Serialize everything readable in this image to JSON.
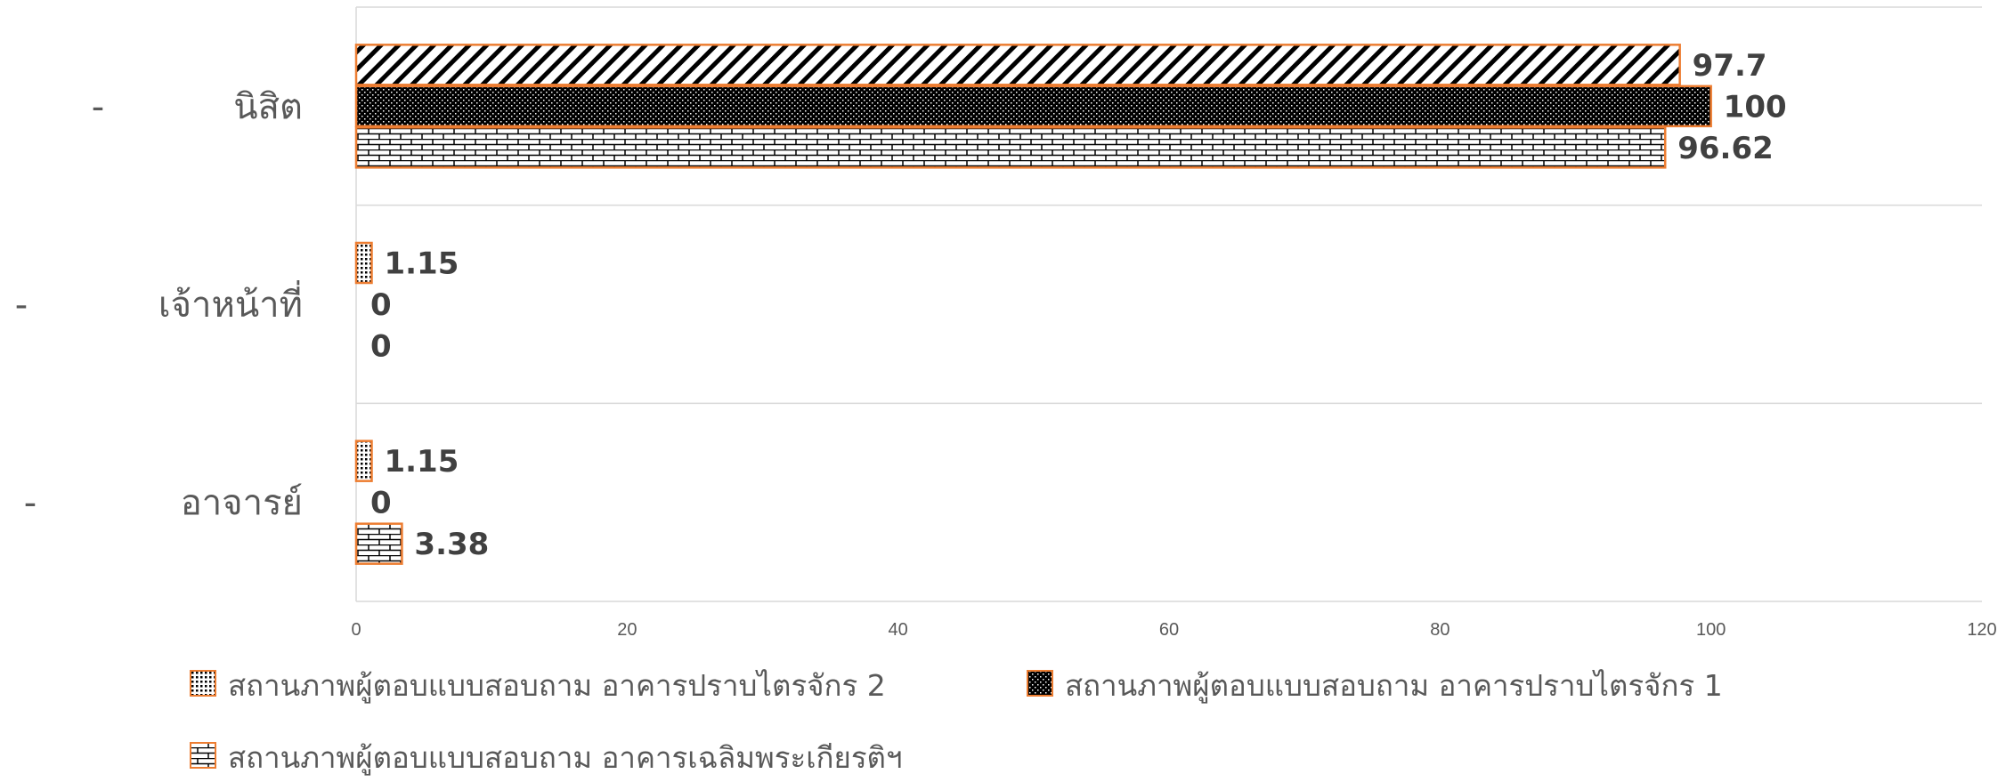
{
  "chart_data": {
    "type": "bar",
    "orientation": "horizontal",
    "categories": [
      "นิสิต",
      "เจ้าหน้าที่",
      "อาจารย์"
    ],
    "category_prefix": "-",
    "series": [
      {
        "name": "สถานภาพผู้ตอบแบบสอบถาม อาคารปราบไตรจักร 2",
        "values": [
          97.7,
          1.15,
          1.15
        ],
        "labels": [
          "97.7",
          "1.15",
          "1.15"
        ],
        "pattern": "diagonal-stripes"
      },
      {
        "name": "สถานภาพผู้ตอบแบบสอบถาม อาคารปราบไตรจักร 1",
        "values": [
          100,
          0,
          0
        ],
        "labels": [
          "100",
          "0",
          "0"
        ],
        "pattern": "dense-dots"
      },
      {
        "name": "สถานภาพผู้ตอบแบบสอบถาม อาคารเฉลิมพระเกียรติฯ",
        "values": [
          96.62,
          0,
          3.38
        ],
        "labels": [
          "96.62",
          "0",
          "3.38"
        ],
        "pattern": "bricks"
      }
    ],
    "xlim": [
      0,
      120
    ],
    "xticks": [
      "0",
      "20",
      "40",
      "60",
      "80",
      "100",
      "120"
    ],
    "grid": true,
    "legend_position": "bottom",
    "colors": {
      "bar_border": "#ED7D31",
      "pattern_ink": "#000000",
      "grid": "#D9D9D9",
      "text": "#595959",
      "data_label": "#404040"
    }
  }
}
